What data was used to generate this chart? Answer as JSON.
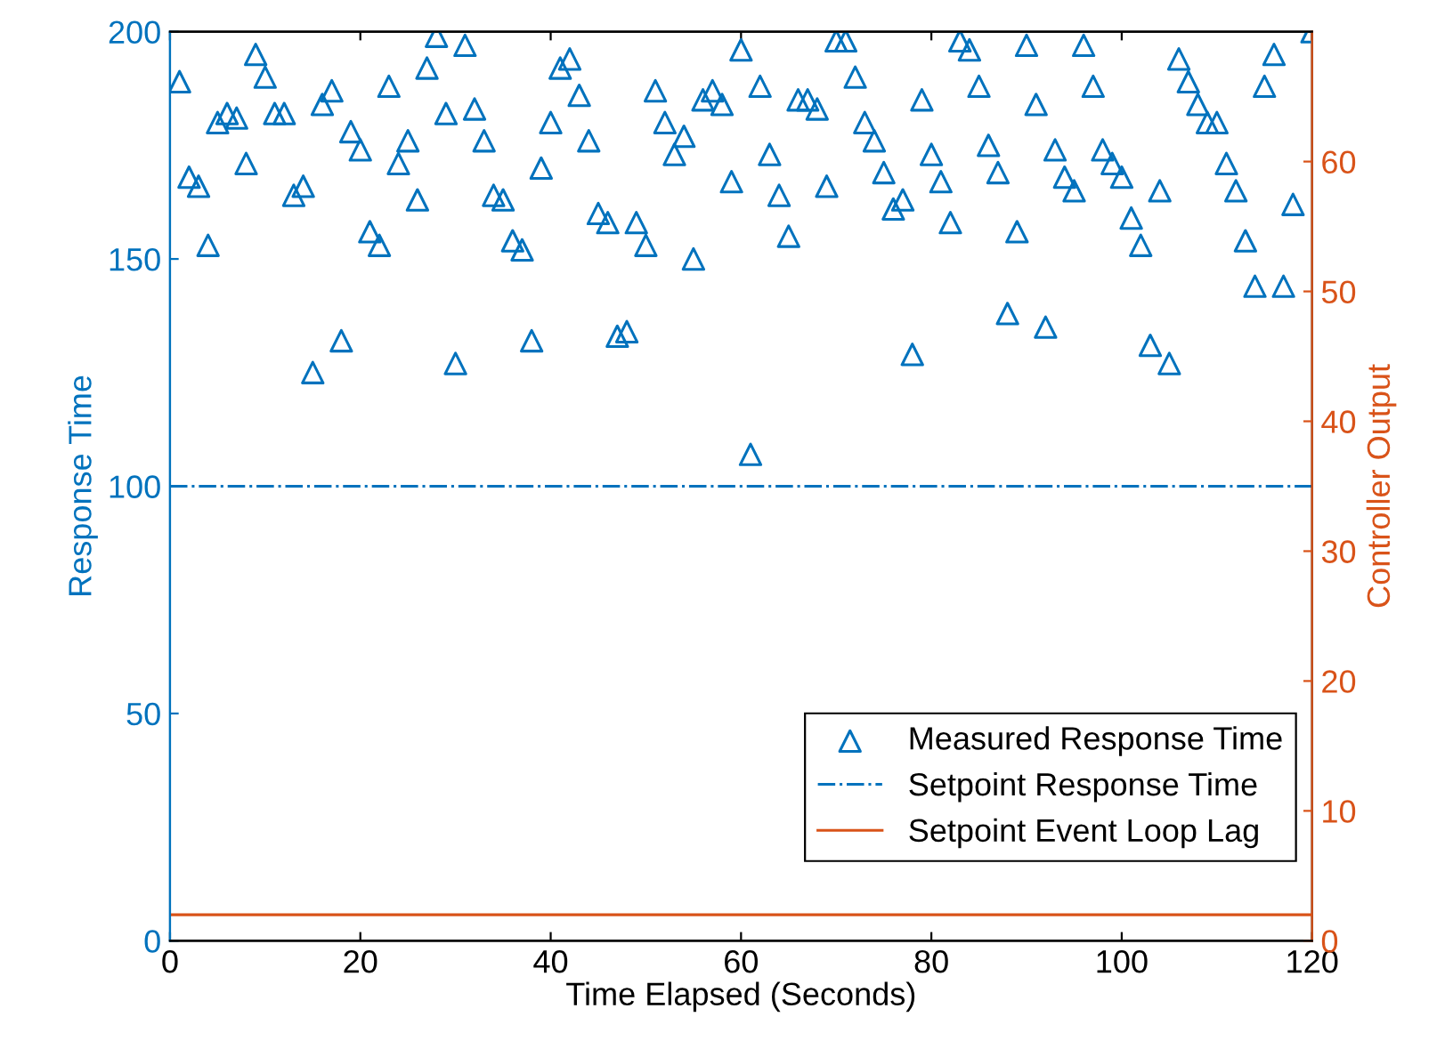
{
  "chart_data": {
    "type": "scatter",
    "xlabel": "Time Elapsed (Seconds)",
    "ylabel": "Response Time",
    "y2label": "Controller Output",
    "xlim": [
      0,
      120
    ],
    "xticks": [
      0,
      20,
      40,
      60,
      80,
      100,
      120
    ],
    "ylim": [
      0,
      200
    ],
    "yticks": [
      0,
      50,
      100,
      150,
      200
    ],
    "y2lim": [
      0,
      70
    ],
    "y2ticks": [
      0,
      10,
      20,
      30,
      40,
      50,
      60
    ],
    "legend": "bottom right",
    "grid": false,
    "series": [
      {
        "name": "Measured Response Time",
        "marker": "triangle",
        "color": "#0072bd",
        "x": [
          1,
          2,
          3,
          4,
          5,
          6,
          7,
          8,
          9,
          10,
          11,
          12,
          13,
          14,
          15,
          16,
          17,
          18,
          19,
          20,
          21,
          22,
          23,
          24,
          25,
          26,
          27,
          28,
          29,
          30,
          31,
          32,
          33,
          34,
          35,
          36,
          37,
          38,
          39,
          40,
          41,
          42,
          43,
          44,
          45,
          46,
          47,
          48,
          49,
          50,
          51,
          52,
          53,
          54,
          55,
          56,
          57,
          58,
          59,
          60,
          61,
          62,
          63,
          64,
          65,
          66,
          67,
          68,
          69,
          70,
          71,
          72,
          73,
          74,
          75,
          76,
          77,
          78,
          79,
          80,
          81,
          82,
          83,
          84,
          85,
          86,
          87,
          88,
          89,
          90,
          91,
          92,
          93,
          94,
          95,
          96,
          97,
          98,
          99,
          100,
          101,
          102,
          103,
          104,
          105,
          106,
          107,
          108,
          109,
          110,
          111,
          112,
          113,
          114,
          115,
          116,
          117,
          118,
          120
        ],
        "values": [
          189,
          168,
          166,
          153,
          180,
          182,
          181,
          171,
          195,
          190,
          182,
          182,
          164,
          166,
          125,
          184,
          187,
          132,
          178,
          174,
          156,
          153,
          188,
          171,
          176,
          163,
          192,
          199,
          182,
          127,
          197,
          183,
          176,
          164,
          163,
          154,
          152,
          132,
          170,
          180,
          192,
          194,
          186,
          176,
          160,
          158,
          133,
          134,
          158,
          153,
          187,
          180,
          173,
          177,
          150,
          185,
          187,
          184,
          167,
          196,
          107,
          188,
          173,
          164,
          155,
          185,
          185,
          183,
          166,
          198,
          198,
          190,
          180,
          176,
          169,
          161,
          163,
          129,
          185,
          173,
          167,
          158,
          198,
          196,
          188,
          175,
          169,
          138,
          156,
          197,
          184,
          135,
          174,
          168,
          165,
          197,
          188,
          174,
          171,
          168,
          159,
          153,
          131,
          165,
          127,
          194,
          189,
          184,
          180,
          180,
          171,
          165,
          154,
          144,
          188,
          195,
          144,
          162,
          200
        ]
      },
      {
        "name": "Setpoint Response Time",
        "type": "line",
        "line_style": "dashdot",
        "color": "#0072bd",
        "x": [
          0,
          120
        ],
        "values": [
          100,
          100
        ]
      },
      {
        "name": "Setpoint Event Loop Lag",
        "type": "line",
        "line_style": "solid",
        "color": "#d95319",
        "axis": "y2",
        "x": [
          0,
          120
        ],
        "values": [
          2,
          2
        ]
      }
    ]
  }
}
